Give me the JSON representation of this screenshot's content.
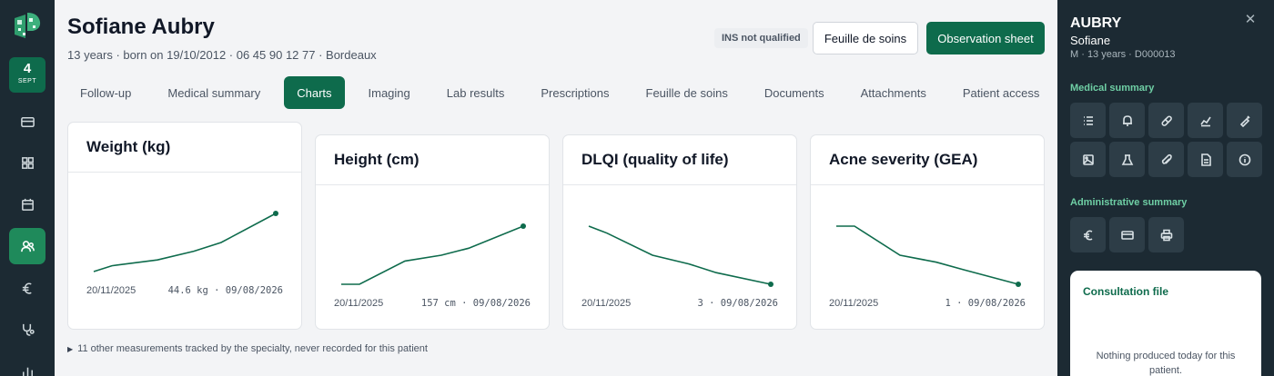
{
  "nav": {
    "date_day": "4",
    "date_month": "SEPT",
    "items": [
      {
        "icon": "card-icon"
      },
      {
        "icon": "grid-icon"
      },
      {
        "icon": "calendar-icon"
      },
      {
        "icon": "patients-icon",
        "active": true
      },
      {
        "icon": "euro-icon"
      },
      {
        "icon": "stethoscope-icon"
      },
      {
        "icon": "stats-icon"
      }
    ]
  },
  "patient": {
    "name": "Sofiane Aubry",
    "meta": "13 years · born on 19/10/2012 · 06 45 90 12 77 · Bordeaux"
  },
  "header": {
    "ins_badge": "INS not qualified",
    "care_sheet_button": "Feuille de soins",
    "observation_button": "Observation sheet"
  },
  "tabs": [
    {
      "label": "Follow-up"
    },
    {
      "label": "Medical summary"
    },
    {
      "label": "Charts",
      "active": true
    },
    {
      "label": "Imaging"
    },
    {
      "label": "Lab results"
    },
    {
      "label": "Prescriptions"
    },
    {
      "label": "Feuille de soins"
    },
    {
      "label": "Documents"
    },
    {
      "label": "Attachments"
    },
    {
      "label": "Patient access"
    }
  ],
  "charts": [
    {
      "title": "Weight (kg)",
      "start_label": "20/11/2025",
      "end_label": "44.6 kg · 09/08/2026"
    },
    {
      "title": "Height (cm)",
      "start_label": "20/11/2025",
      "end_label": "157 cm · 09/08/2026"
    },
    {
      "title": "DLQI (quality of life)",
      "start_label": "20/11/2025",
      "end_label": "3 · 09/08/2026"
    },
    {
      "title": "Acne severity (GEA)",
      "start_label": "20/11/2025",
      "end_label": "1 · 09/08/2026"
    }
  ],
  "chart_data": [
    {
      "type": "line",
      "title": "Weight (kg)",
      "series": [
        {
          "values": [
            0.0,
            0.1,
            0.2,
            0.35,
            0.5,
            1.0
          ]
        }
      ],
      "last_value": "44.6 kg",
      "x_start": "20/11/2025",
      "x_end": "09/08/2026",
      "line_color": "#0e6b4c"
    },
    {
      "type": "line",
      "title": "Height (cm)",
      "series": [
        {
          "values": [
            0.0,
            0.0,
            0.4,
            0.5,
            0.62,
            1.0
          ]
        }
      ],
      "last_value": "157 cm",
      "x_start": "20/11/2025",
      "x_end": "09/08/2026",
      "line_color": "#0e6b4c"
    },
    {
      "type": "line",
      "title": "DLQI (quality of life)",
      "series": [
        {
          "values": [
            1.0,
            0.88,
            0.5,
            0.35,
            0.2,
            0.0
          ]
        }
      ],
      "last_value": "3",
      "x_start": "20/11/2025",
      "x_end": "09/08/2026",
      "line_color": "#0e6b4c"
    },
    {
      "type": "line",
      "title": "Acne severity (GEA)",
      "series": [
        {
          "values": [
            1.0,
            1.0,
            0.5,
            0.38,
            0.25,
            0.0
          ]
        }
      ],
      "last_value": "1",
      "x_start": "20/11/2025",
      "x_end": "09/08/2026",
      "line_color": "#0e6b4c"
    }
  ],
  "more_measurements": "11 other measurements tracked by the specialty, never recorded for this patient",
  "right_panel": {
    "surname": "AUBRY",
    "first_name": "Sofiane",
    "meta": "M · 13 years · D000013",
    "medical_summary_title": "Medical summary",
    "medical_icons": [
      "list-icon",
      "bell-icon",
      "pill-icon",
      "chart-line-icon",
      "syringe-icon",
      "image-icon",
      "flask-icon",
      "paperclip-icon",
      "document-icon",
      "info-icon"
    ],
    "admin_summary_title": "Administrative summary",
    "admin_icons": [
      "euro-icon",
      "card-icon",
      "printer-icon"
    ],
    "consultation_title": "Consultation file",
    "consultation_empty": "Nothing produced today for this patient."
  },
  "colors": {
    "brand": "#0e6b4c",
    "rail": "#1c2a33",
    "accent_text": "#6fcfa5"
  }
}
